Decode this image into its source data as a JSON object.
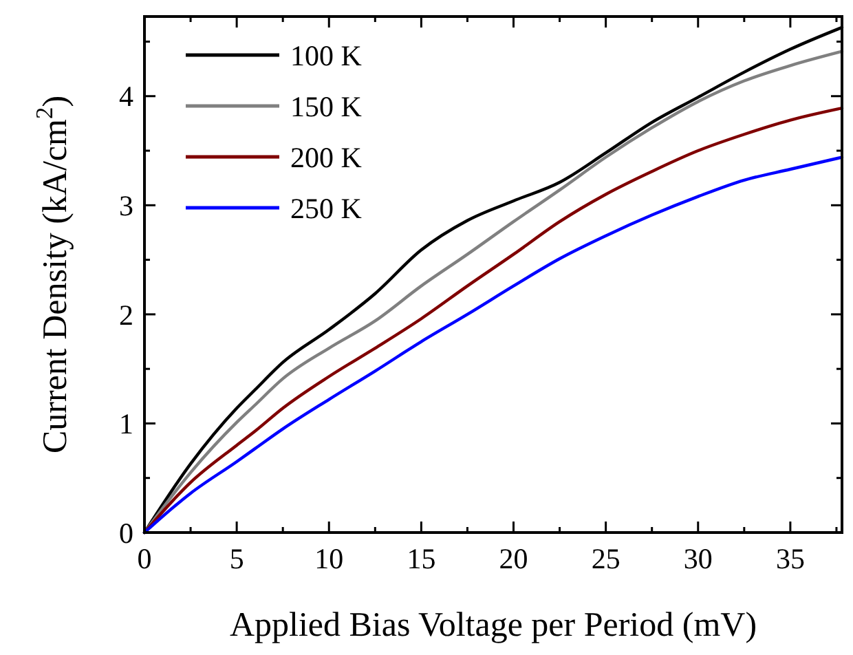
{
  "chart_data": {
    "type": "line",
    "xlabel": "Applied Bias Voltage per Period (mV)",
    "ylabel": "Current Density (kA/cm$^{2}$)",
    "x": [
      0,
      2.5,
      5,
      6,
      7.5,
      10,
      12.5,
      15,
      17.5,
      20,
      22.5,
      25,
      27.5,
      30,
      32.5,
      35,
      37.8
    ],
    "series": [
      {
        "name": "100 K",
        "color": "#000000",
        "values": [
          0,
          0.63,
          1.14,
          1.31,
          1.56,
          1.86,
          2.19,
          2.59,
          2.86,
          3.04,
          3.21,
          3.48,
          3.76,
          3.99,
          4.22,
          4.43,
          4.63
        ]
      },
      {
        "name": "150 K",
        "color": "#808080",
        "values": [
          0,
          0.55,
          1.01,
          1.17,
          1.41,
          1.69,
          1.94,
          2.26,
          2.55,
          2.85,
          3.14,
          3.44,
          3.71,
          3.95,
          4.14,
          4.28,
          4.41
        ]
      },
      {
        "name": "200 K",
        "color": "#800000",
        "values": [
          0,
          0.46,
          0.8,
          0.93,
          1.14,
          1.43,
          1.69,
          1.96,
          2.26,
          2.55,
          2.85,
          3.1,
          3.31,
          3.5,
          3.65,
          3.78,
          3.89
        ]
      },
      {
        "name": "250 K",
        "color": "#0000ff",
        "values": [
          0,
          0.36,
          0.65,
          0.77,
          0.95,
          1.22,
          1.48,
          1.75,
          2.0,
          2.26,
          2.51,
          2.72,
          2.91,
          3.08,
          3.23,
          3.33,
          3.44
        ]
      }
    ],
    "xlim": [
      0,
      37.8
    ],
    "ylim": [
      0,
      4.73
    ],
    "xticks": [
      0,
      {
        "value": 2.5,
        "label": null
      },
      5,
      {
        "value": 7.5,
        "label": null
      },
      10,
      {
        "value": 12.5,
        "label": null
      },
      15,
      {
        "value": 17.5,
        "label": null
      },
      20,
      {
        "value": 22.5,
        "label": null
      },
      25,
      {
        "value": 27.5,
        "label": null
      },
      30,
      {
        "value": 32.5,
        "label": null
      },
      35,
      {
        "value": 37.5,
        "label": null
      }
    ],
    "yticks": [
      0,
      {
        "value": 0.5,
        "label": null
      },
      1,
      {
        "value": 1.5,
        "label": null
      },
      2,
      {
        "value": 2.5,
        "label": null
      },
      3,
      {
        "value": 3.5,
        "label": null
      },
      4,
      {
        "value": 4.5,
        "label": null
      }
    ],
    "legend": "top left",
    "grid": false,
    "marker": "none",
    "line_style": "solid"
  }
}
